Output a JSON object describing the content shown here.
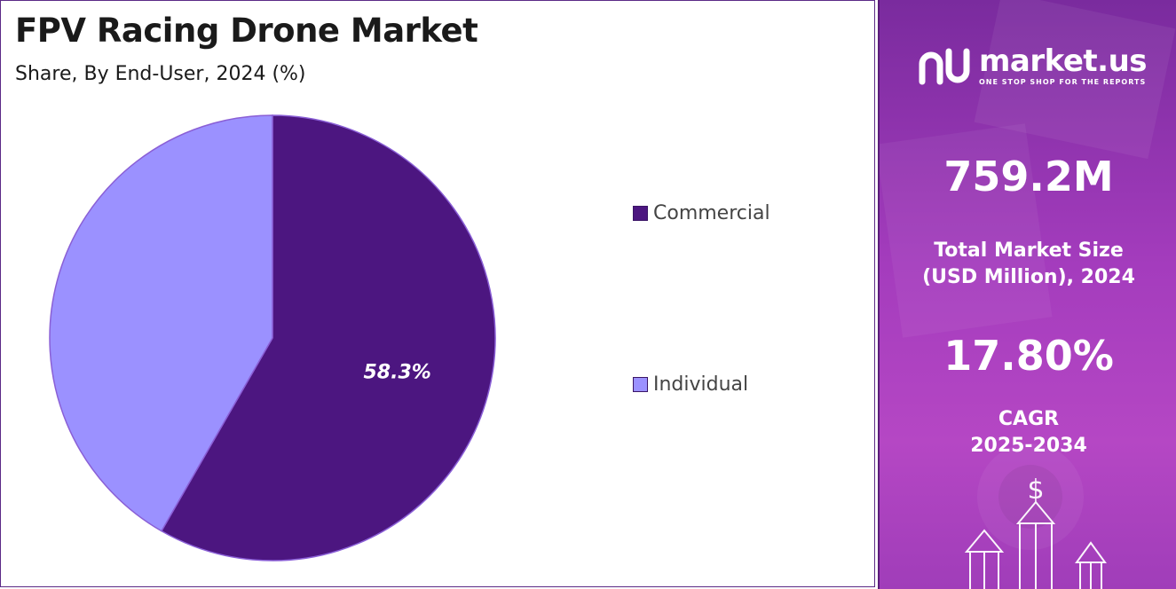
{
  "chart_data": {
    "type": "pie",
    "title": "FPV Racing Drone Market",
    "subtitle": "Share, By End-User, 2024 (%)",
    "categories": [
      "Commercial",
      "Individual"
    ],
    "values": [
      58.3,
      41.7
    ],
    "data_labels": [
      "58.3%",
      ""
    ],
    "colors": [
      "#4c1680",
      "#9b91ff"
    ],
    "edge_color": "#8a5fd6",
    "legend_position": "right"
  },
  "legend": {
    "items": [
      {
        "label": "Commercial",
        "color": "#4c1680"
      },
      {
        "label": "Individual",
        "color": "#9b91ff"
      }
    ]
  },
  "side_panel": {
    "brand": "market.us",
    "tagline": "ONE STOP SHOP FOR THE REPORTS",
    "market_size": "759.2M",
    "market_size_label_1": "Total Market Size",
    "market_size_label_2": "(USD Million), 2024",
    "cagr": "17.80%",
    "cagr_label_1": "CAGR",
    "cagr_label_2": "2025-2034",
    "icon": "dollar-growth-arrows-icon"
  }
}
